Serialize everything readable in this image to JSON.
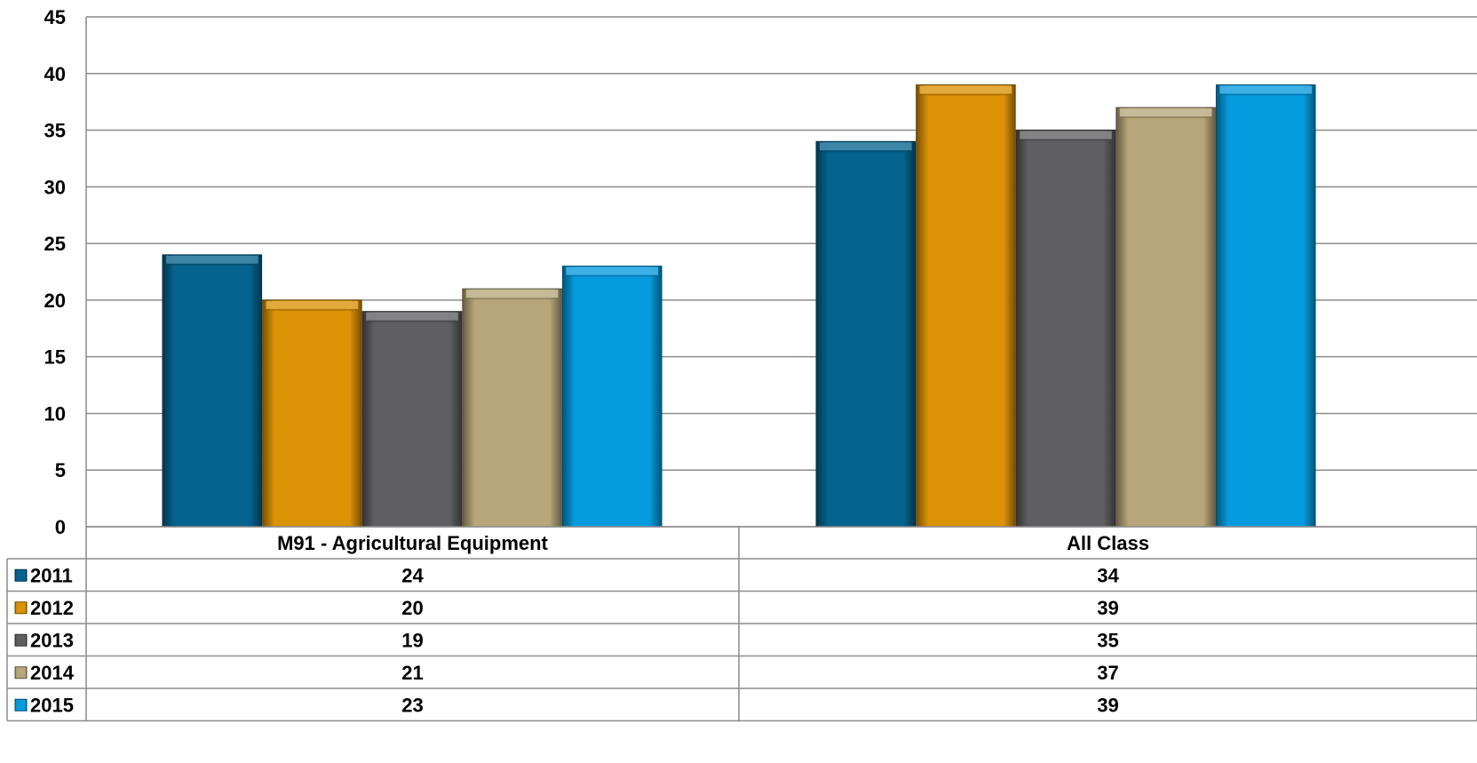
{
  "chart_data": {
    "type": "bar",
    "title": "",
    "xlabel": "",
    "ylabel": "",
    "ylim": [
      0,
      45
    ],
    "yticks": [
      0,
      5,
      10,
      15,
      20,
      25,
      30,
      35,
      40,
      45
    ],
    "grid": true,
    "legend": "data-table",
    "categories": [
      "M91 - Agricultural Equipment",
      "All Class"
    ],
    "series": [
      {
        "name": "2011",
        "color": "#05638E",
        "values": [
          24,
          34
        ]
      },
      {
        "name": "2012",
        "color": "#DB9205",
        "values": [
          20,
          39
        ]
      },
      {
        "name": "2013",
        "color": "#5F5F61",
        "values": [
          19,
          35
        ]
      },
      {
        "name": "2014",
        "color": "#B7A679",
        "values": [
          21,
          37
        ]
      },
      {
        "name": "2015",
        "color": "#069BDE",
        "values": [
          23,
          39
        ]
      }
    ]
  }
}
